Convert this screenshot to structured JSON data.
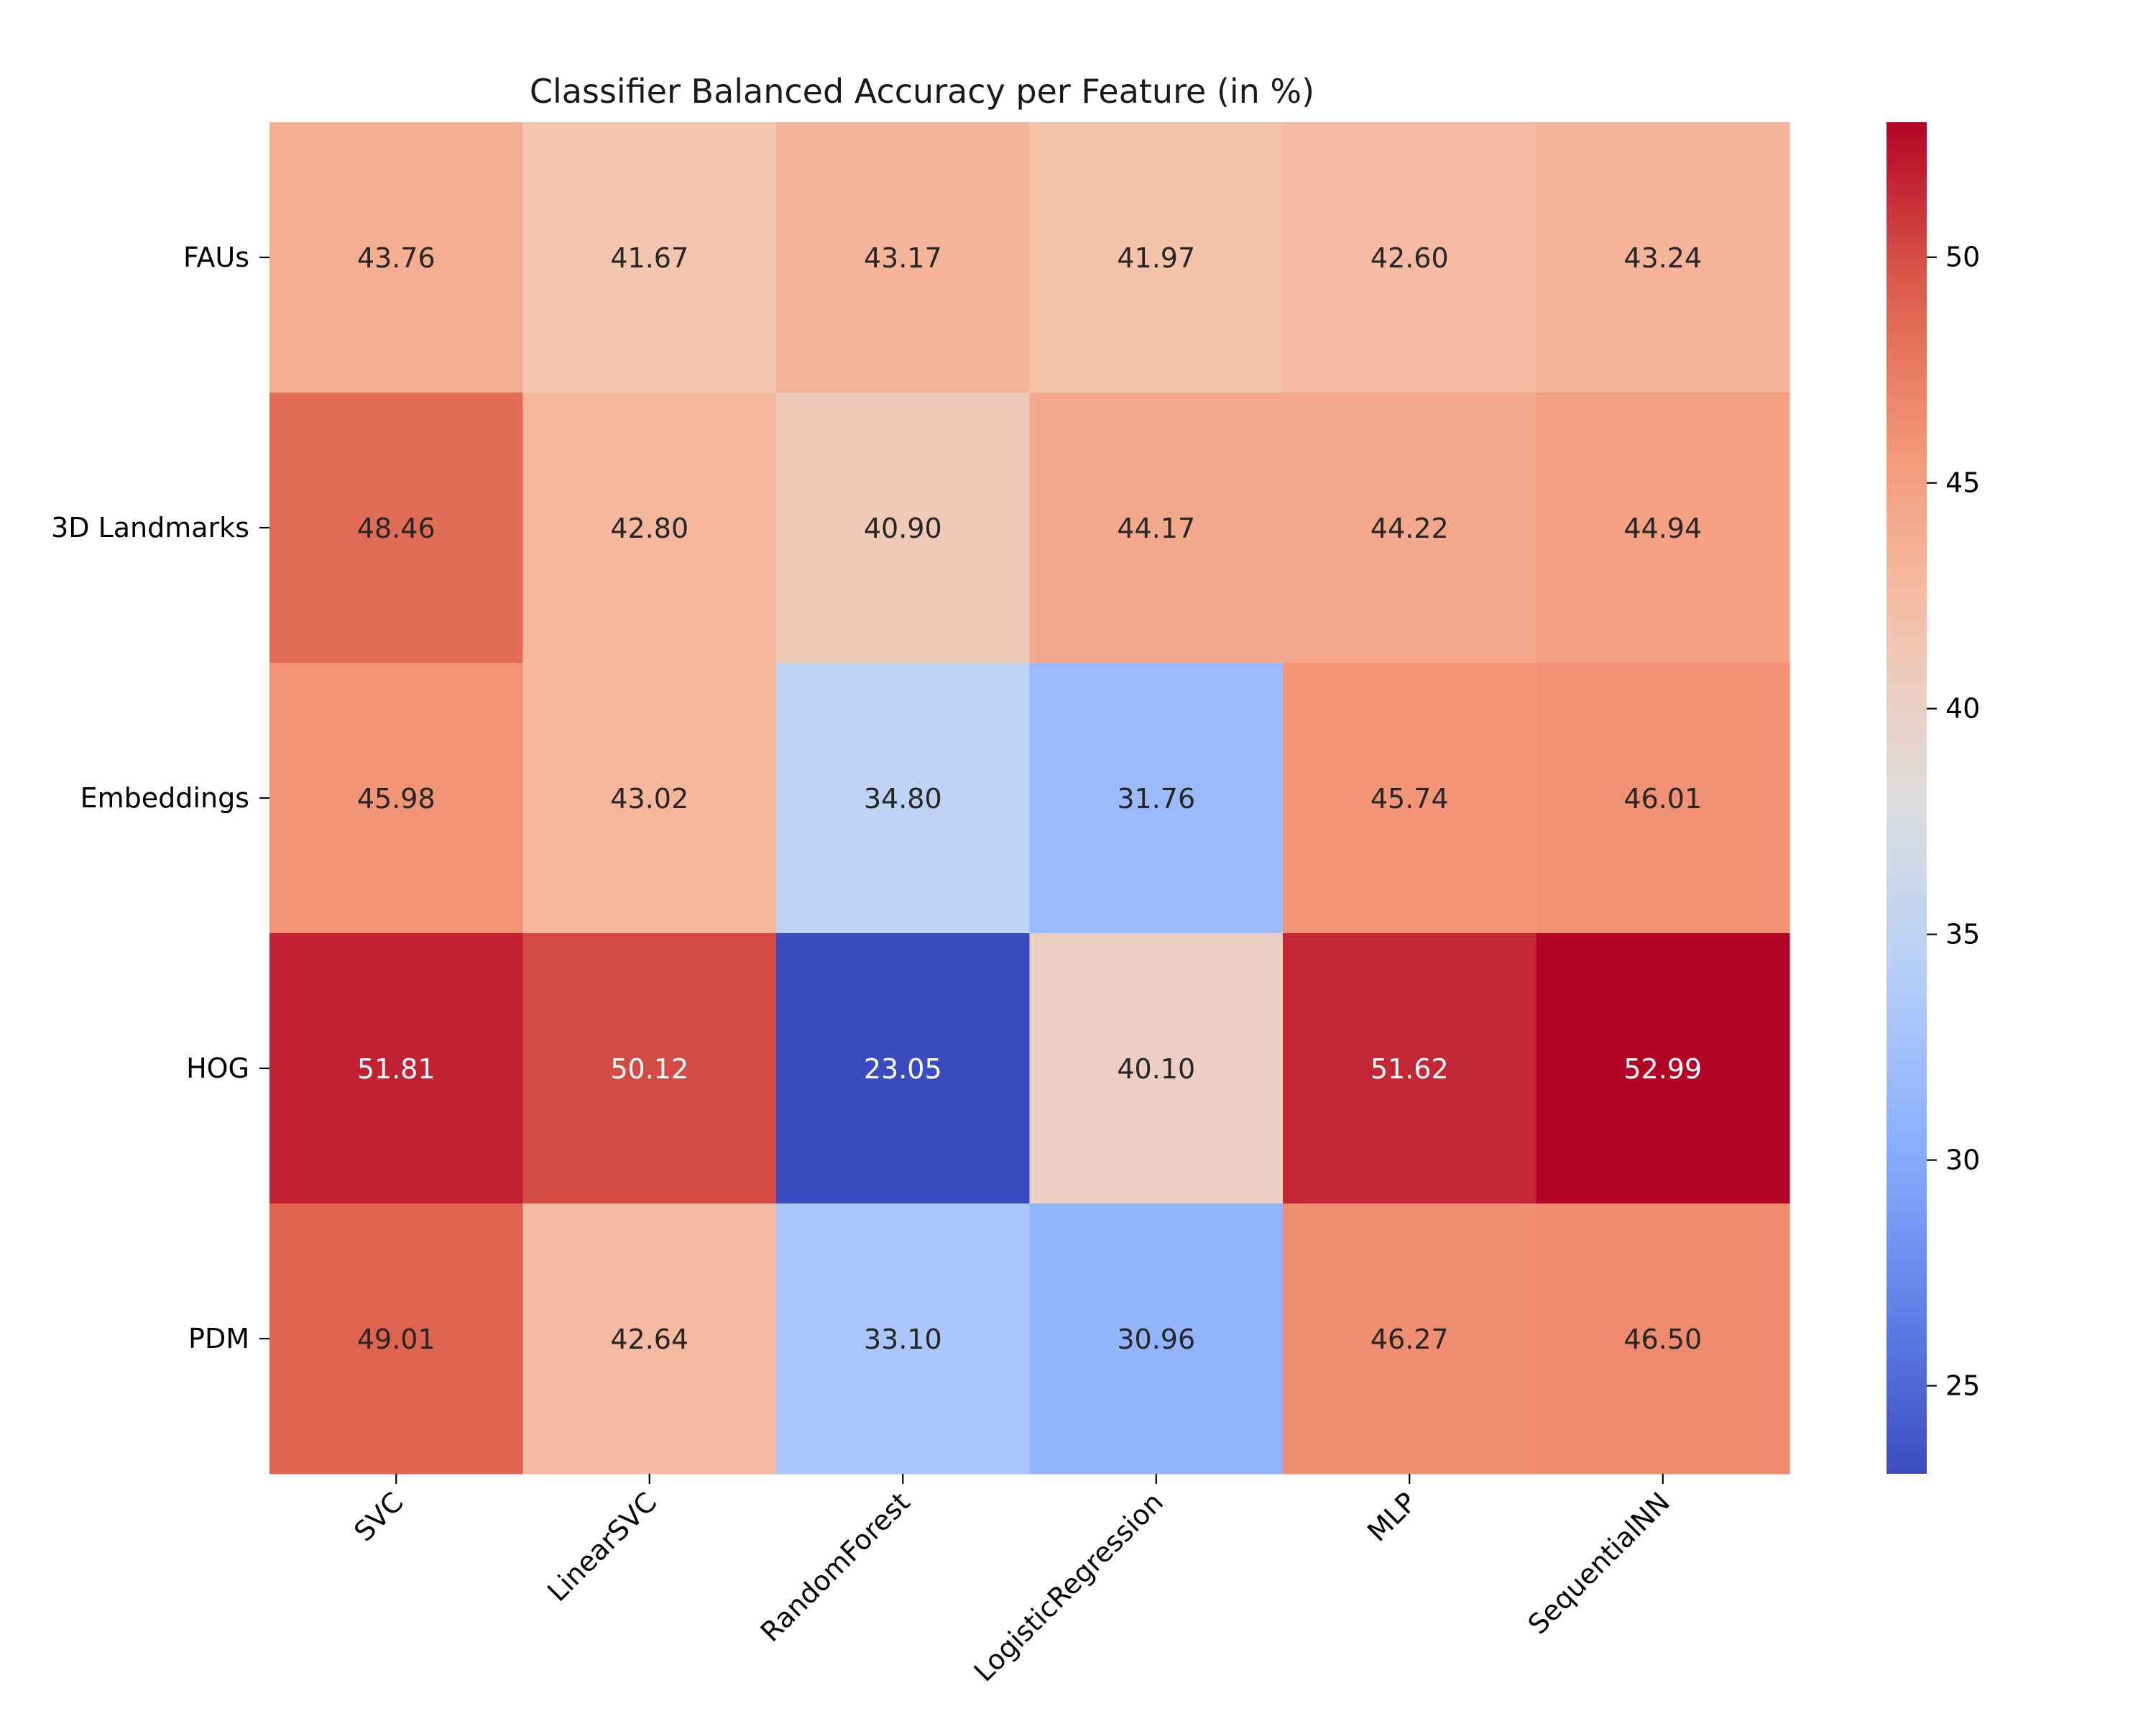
{
  "chart_data": {
    "type": "heatmap",
    "title": "Classifier Balanced Accuracy per Feature (in %)",
    "xlabel": "",
    "ylabel": "",
    "x_categories": [
      "SVC",
      "LinearSVC",
      "RandomForest",
      "LogisticRegression",
      "MLP",
      "SequentialNN"
    ],
    "y_categories": [
      "FAUs",
      "3D Landmarks",
      "Embeddings",
      "HOG",
      "PDM"
    ],
    "values": [
      [
        43.76,
        41.67,
        43.17,
        41.97,
        42.6,
        43.24
      ],
      [
        48.46,
        42.8,
        40.9,
        44.17,
        44.22,
        44.94
      ],
      [
        45.98,
        43.02,
        34.8,
        31.76,
        45.74,
        46.01
      ],
      [
        51.81,
        50.12,
        23.05,
        40.1,
        51.62,
        52.99
      ],
      [
        49.01,
        42.64,
        33.1,
        30.96,
        46.27,
        46.5
      ]
    ],
    "colormap": "coolwarm",
    "value_range": [
      23.05,
      52.99
    ],
    "colorbar": {
      "ticks": [
        25,
        30,
        35,
        40,
        45,
        50
      ],
      "placement": "right"
    },
    "annotation_format": "2 decimals",
    "grid": false,
    "x_tick_rotation": "45 degrees"
  }
}
